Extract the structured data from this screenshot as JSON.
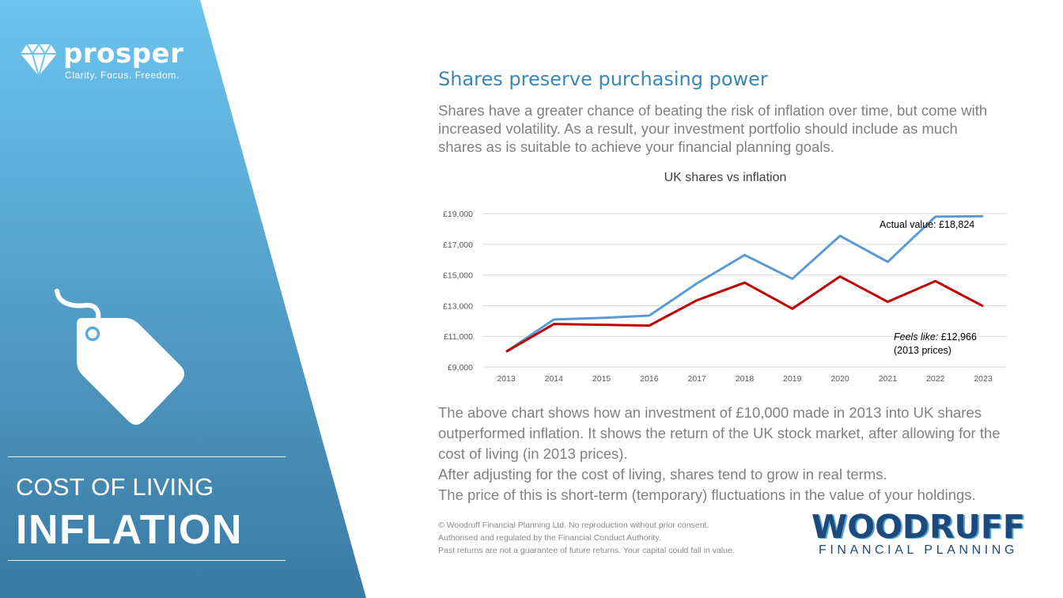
{
  "brand": {
    "name": "prosper",
    "tagline": "Clarity. Focus. Freedom.",
    "icon": "diamond-icon",
    "colors": {
      "panel_top": "#6cc4ef",
      "panel_bottom": "#3a7aa3"
    }
  },
  "section": {
    "icon": "price-tag-icon",
    "subtitle": "COST OF LIVING",
    "title": "INFLATION"
  },
  "slide": {
    "title": "Shares preserve purchasing power",
    "intro": "Shares have a greater chance of beating the risk of inflation over time, but come with increased volatility. As a result, your investment portfolio should include as much shares as is suitable to achieve your financial planning goals.",
    "explanation": [
      "The above chart shows how an investment of £10,000 made in 2013 into UK shares outperformed inflation.  It shows the return of the UK stock market, after allowing for the cost of living (in 2013 prices).",
      "After adjusting for the cost of living, shares tend to grow in real terms.",
      "The price of this is short-term (temporary) fluctuations in the value of your holdings."
    ],
    "legal": [
      "© Woodruff Financial Planning Ltd. No reproduction without prior consent.",
      "Authorised and regulated by the Financial Conduct Authority.",
      "Past returns are not a guarantee of future returns. Your capital could fall in value."
    ]
  },
  "logo": {
    "word": "WOODRUFF",
    "sub": "FINANCIAL PLANNING",
    "color": "#1d4a7a",
    "accent": "#4fa7df"
  },
  "chart_data": {
    "type": "line",
    "title": "UK shares vs inflation",
    "xlabel": "",
    "ylabel": "",
    "categories": [
      "2013",
      "2014",
      "2015",
      "2016",
      "2017",
      "2018",
      "2019",
      "2020",
      "2021",
      "2022",
      "2023"
    ],
    "series": [
      {
        "values": [
          10000,
          12100,
          12200,
          12350,
          14450,
          16300,
          14750,
          17550,
          15850,
          18800,
          18824
        ],
        "color": "#5b9bd5"
      },
      {
        "values": [
          10000,
          11800,
          11750,
          11700,
          13350,
          14500,
          12800,
          14900,
          13250,
          14600,
          12966
        ],
        "color": "#c00000"
      }
    ],
    "yticks": [
      "£9,000",
      "£11,000",
      "£13,000",
      "£15,000",
      "£17,000",
      "£19,000"
    ],
    "ylim": [
      9000,
      19000
    ],
    "grid": true,
    "annotations": {
      "actual": "Actual value: £18,824",
      "feels_prefix": "Feels like:",
      "feels_value": " £12,966",
      "feels_note": "(2013  prices)"
    }
  }
}
